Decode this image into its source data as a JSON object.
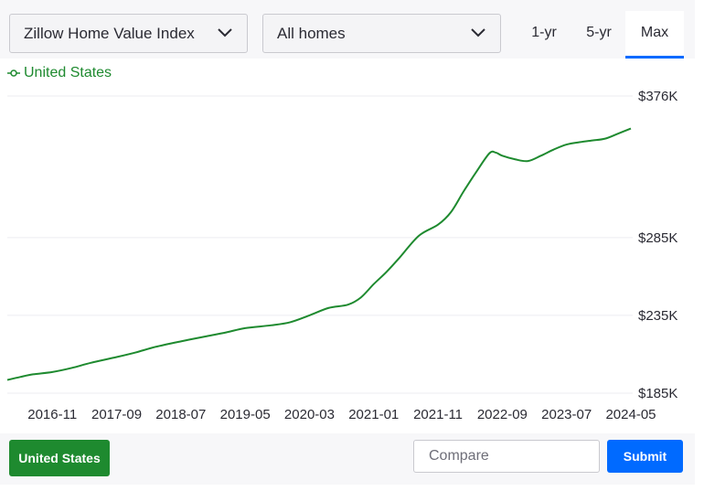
{
  "controls": {
    "metric_select": "Zillow Home Value Index",
    "home_type_select": "All homes",
    "ranges": [
      "1-yr",
      "5-yr",
      "Max"
    ],
    "active_range": "Max"
  },
  "footer": {
    "region_button": "United States",
    "compare_placeholder": "Compare",
    "submit_label": "Submit"
  },
  "colors": {
    "series": "#1e8a2f",
    "accent": "#006aff"
  },
  "chart_data": {
    "type": "line",
    "legend_position": "top-left",
    "grid": true,
    "y_ticks": [
      {
        "value": 376,
        "label": "$376K"
      },
      {
        "value": 285,
        "label": "$285K"
      },
      {
        "value": 235,
        "label": "$235K"
      },
      {
        "value": 185,
        "label": "$185K"
      }
    ],
    "x_ticks": [
      "2016-11",
      "2017-09",
      "2018-07",
      "2019-05",
      "2020-03",
      "2021-01",
      "2021-11",
      "2022-09",
      "2023-07",
      "2024-05"
    ],
    "y_unit": "thousand USD",
    "series": [
      {
        "name": "United States",
        "x": [
          "2016-04",
          "2016-06",
          "2016-08",
          "2016-11",
          "2017-02",
          "2017-05",
          "2017-09",
          "2017-12",
          "2018-03",
          "2018-07",
          "2018-11",
          "2019-02",
          "2019-05",
          "2019-09",
          "2019-12",
          "2020-03",
          "2020-06",
          "2020-09",
          "2020-11",
          "2021-01",
          "2021-03",
          "2021-05",
          "2021-08",
          "2021-11",
          "2022-01",
          "2022-03",
          "2022-05",
          "2022-07",
          "2022-08",
          "2022-09",
          "2022-11",
          "2023-01",
          "2023-03",
          "2023-05",
          "2023-07",
          "2023-09",
          "2023-11",
          "2024-01",
          "2024-03",
          "2024-05"
        ],
        "values": [
          193.5,
          195.4,
          197.1,
          198.6,
          201.2,
          204.5,
          208.2,
          211.2,
          214.7,
          218.3,
          221.6,
          224.0,
          226.8,
          228.6,
          230.6,
          235.0,
          239.8,
          241.9,
          246.5,
          255.1,
          263.0,
          272.0,
          286.1,
          293.3,
          301.3,
          314.8,
          327.5,
          339.2,
          339.6,
          337.6,
          335.3,
          334.2,
          337.6,
          341.6,
          344.8,
          346.3,
          347.4,
          348.6,
          351.8,
          355.1
        ]
      }
    ]
  }
}
